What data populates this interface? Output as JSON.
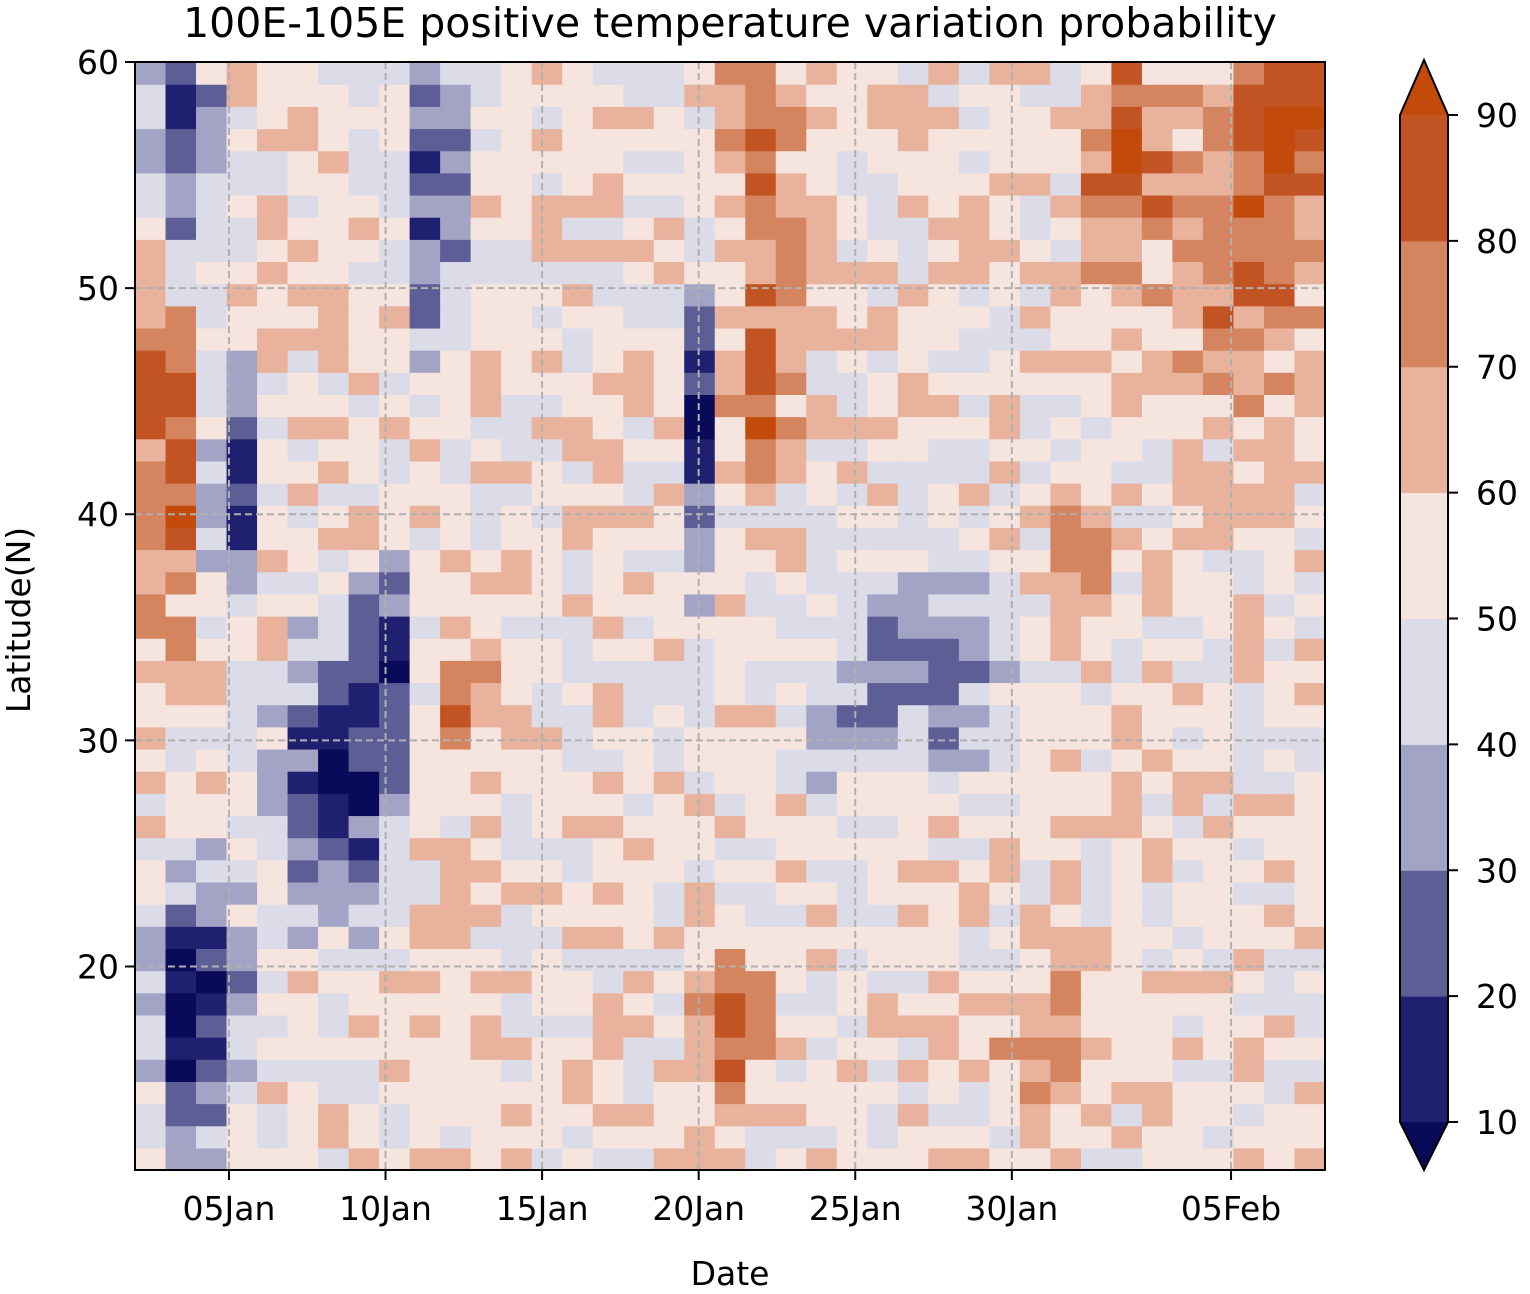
{
  "chart_data": {
    "type": "heatmap",
    "title": "100E-105E positive temperature variation probability",
    "xlabel": "Date",
    "ylabel": "Latitude(N)",
    "x_ticks": [
      "05Jan",
      "10Jan",
      "15Jan",
      "20Jan",
      "25Jan",
      "30Jan",
      "05Feb"
    ],
    "x_tick_days": [
      5,
      10,
      15,
      20,
      25,
      30,
      37
    ],
    "xlim_days": [
      2,
      40
    ],
    "y_ticks": [
      20,
      30,
      40,
      50,
      60
    ],
    "ylim": [
      11,
      60
    ],
    "grid": true,
    "grid_style": "dashed",
    "colorbar": {
      "ticks": [
        10,
        20,
        30,
        40,
        50,
        60,
        70,
        80,
        90
      ],
      "extend": "both",
      "colors": [
        "#0a0a5a",
        "#1f2070",
        "#5e5e97",
        "#a3a3c5",
        "#dcdce8",
        "#f6e4de",
        "#e8b29c",
        "#d4845e",
        "#c25322",
        "#c24a0b"
      ]
    },
    "grid_resolution": {
      "nx": 39,
      "ny": 50
    },
    "features": [
      {
        "day": 3.2,
        "lat": 44,
        "value": 88,
        "sd": 1.0,
        "sl": 7
      },
      {
        "day": 3.5,
        "lat": 56,
        "value": 12,
        "sd": 0.8,
        "sl": 5
      },
      {
        "day": 4,
        "lat": 18,
        "value": 8,
        "sd": 1.0,
        "sl": 5
      },
      {
        "day": 5,
        "lat": 41,
        "value": 8,
        "sd": 0.6,
        "sl": 4
      },
      {
        "day": 8.5,
        "lat": 28,
        "value": 8,
        "sd": 1.3,
        "sl": 4
      },
      {
        "day": 10,
        "lat": 34,
        "value": 12,
        "sd": 0.7,
        "sl": 2
      },
      {
        "day": 11.5,
        "lat": 55,
        "value": 18,
        "sd": 0.8,
        "sl": 5
      },
      {
        "day": 12.5,
        "lat": 32,
        "value": 78,
        "sd": 0.7,
        "sl": 2
      },
      {
        "day": 20,
        "lat": 44,
        "value": 12,
        "sd": 0.35,
        "sl": 4
      },
      {
        "day": 21,
        "lat": 17,
        "value": 82,
        "sd": 0.7,
        "sl": 2.5
      },
      {
        "day": 22,
        "lat": 55,
        "value": 80,
        "sd": 0.9,
        "sl": 6
      },
      {
        "day": 22,
        "lat": 45,
        "value": 80,
        "sd": 0.6,
        "sl": 2
      },
      {
        "day": 27,
        "lat": 33,
        "value": 28,
        "sd": 2.5,
        "sl": 3.5
      },
      {
        "day": 31,
        "lat": 17,
        "value": 74,
        "sd": 1.0,
        "sl": 2
      },
      {
        "day": 32,
        "lat": 38,
        "value": 76,
        "sd": 0.8,
        "sl": 2
      },
      {
        "day": 33.5,
        "lat": 56,
        "value": 82,
        "sd": 0.8,
        "sl": 4
      },
      {
        "day": 37.5,
        "lat": 52,
        "value": 80,
        "sd": 2.0,
        "sl": 5
      },
      {
        "day": 39,
        "lat": 58,
        "value": 85,
        "sd": 0.9,
        "sl": 2.5
      }
    ]
  }
}
